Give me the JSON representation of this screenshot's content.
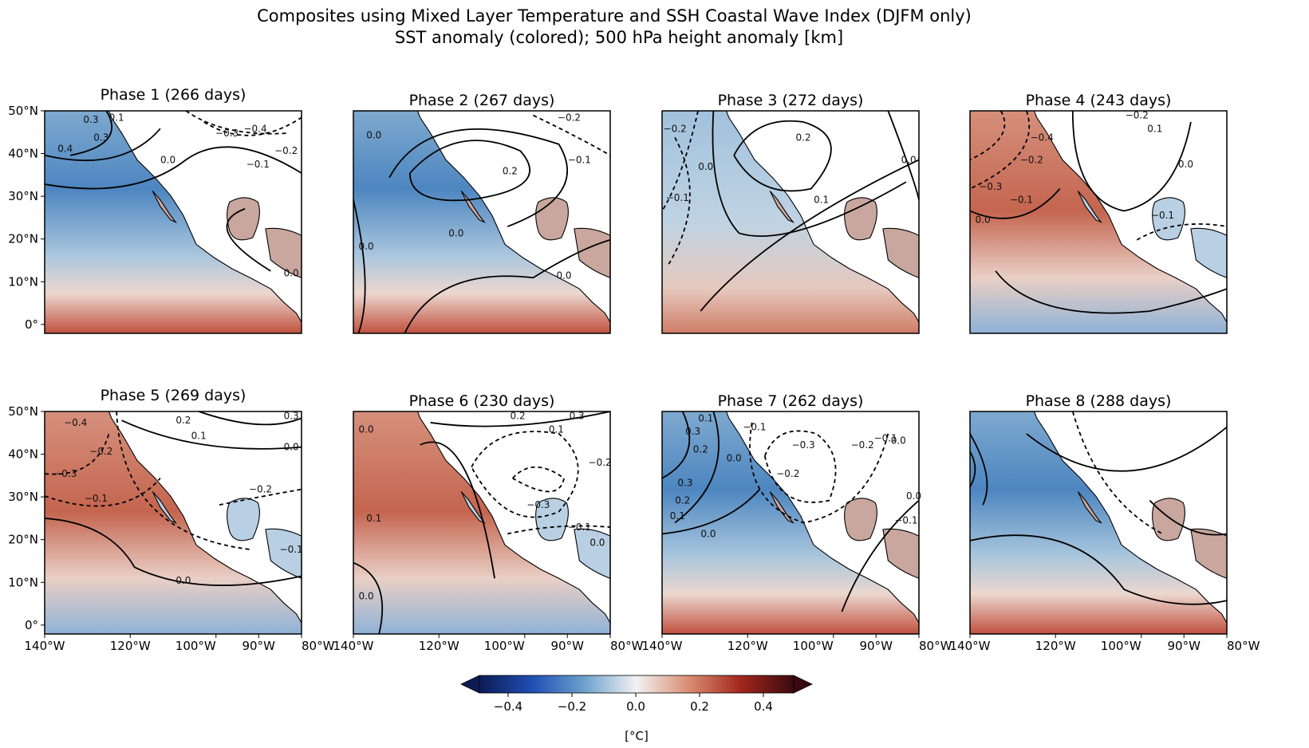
{
  "figure": {
    "title_line1": "Composites using Mixed Layer Temperature and SSH Coastal Wave Index (DJFM only)",
    "title_line2": "SST anomaly (colored); 500 hPa height anomaly [km]"
  },
  "panels": [
    {
      "title": "Phase 1 (266 days)",
      "bg": "cool",
      "contour_labels": [
        "0.3",
        "0.1",
        "0.4",
        "0.3",
        "−0.4",
        "−0.3",
        "−0.2",
        "−0.1",
        "0.0",
        "0.0"
      ]
    },
    {
      "title": "Phase 2 (267 days)",
      "bg": "cool",
      "contour_labels": [
        "0.0",
        "0.2",
        "−0.2",
        "−0.1",
        "0.0",
        "0.0",
        "0.0"
      ]
    },
    {
      "title": "Phase 3 (272 days)",
      "bg": "mixed",
      "contour_labels": [
        "−0.2",
        "0.0",
        "−0.1",
        "0.2",
        "0.0",
        "0.1"
      ]
    },
    {
      "title": "Phase 4 (243 days)",
      "bg": "warm",
      "contour_labels": [
        "−0.2",
        "−0.4",
        "−0.3",
        "−0.2",
        "−0.1",
        "0.0",
        "0.1",
        "0.0",
        "−0.1"
      ]
    },
    {
      "title": "Phase 5 (269 days)",
      "bg": "warm",
      "contour_labels": [
        "−0.4",
        "0.2",
        "0.3",
        "0.1",
        "0.0",
        "−0.3",
        "−0.2",
        "−0.1",
        "−0.2",
        "−0.1",
        "0.0"
      ]
    },
    {
      "title": "Phase 6 (230 days)",
      "bg": "warm",
      "contour_labels": [
        "0.0",
        "0.2",
        "0.3",
        "0.1",
        "−0.2",
        "−0.3",
        "−0.1",
        "0.1",
        "0.0",
        "0.0"
      ]
    },
    {
      "title": "Phase 7 (262 days)",
      "bg": "cool",
      "contour_labels": [
        "0.1",
        "0.3",
        "0.2",
        "−0.1",
        "0.0",
        "−0.3",
        "−0.2",
        "−0.1",
        "0.0",
        "0.3",
        "0.2",
        "0.1",
        "0.0",
        "−0.2",
        "0.0",
        "−0.1"
      ]
    },
    {
      "title": "Phase 8 (288 days)",
      "bg": "cool",
      "contour_labels": []
    }
  ],
  "axes": {
    "lat_ticks": [
      "50°N",
      "40°N",
      "30°N",
      "20°N",
      "10°N",
      "0°"
    ],
    "lon_ticks": [
      "140°W",
      "120°W",
      "100°W",
      "90°W",
      "80°W"
    ]
  },
  "colorbar": {
    "ticks": [
      "−0.4",
      "−0.2",
      "0.0",
      "0.2",
      "0.4"
    ],
    "label": "[°C]",
    "colors": [
      "#0d1b55",
      "#1f4fb5",
      "#6b9fcc",
      "#f2f2f2",
      "#d98a6e",
      "#a3271c",
      "#3a0a10"
    ]
  }
}
